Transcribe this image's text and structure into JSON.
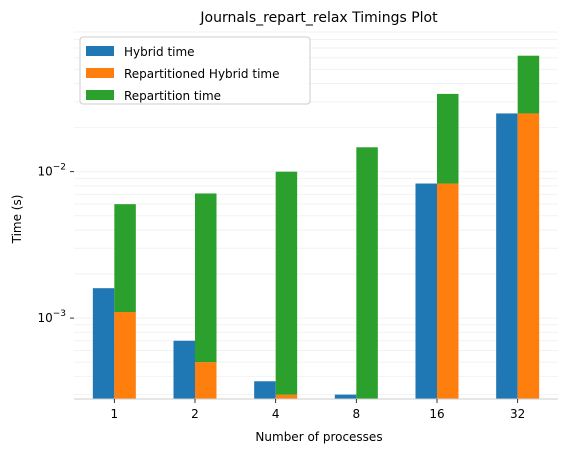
{
  "chart_data": {
    "type": "bar",
    "title": "Journals_repart_relax Timings Plot",
    "xlabel": "Number of processes",
    "ylabel": "Time (s)",
    "yscale": "log",
    "ylim": [
      0.00028,
      0.09
    ],
    "yticks": [
      {
        "value": 0.001,
        "base": "10",
        "exp": "−3"
      },
      {
        "value": 0.01,
        "base": "10",
        "exp": "−2"
      }
    ],
    "grid": "horizontal-minor",
    "legend_position": "top-left",
    "categories": [
      "1",
      "2",
      "4",
      "8",
      "16",
      "32"
    ],
    "series": [
      {
        "name": "Hybrid time",
        "color": "#1f77b4",
        "values": [
          0.0016,
          0.0007,
          0.00037,
          0.0003,
          0.0083,
          0.025
        ],
        "stack": "none"
      },
      {
        "name": "Repartitioned Hybrid time",
        "color": "#ff7f0e",
        "values": [
          0.0011,
          0.0005,
          0.0003,
          0.00028,
          0.0083,
          0.025
        ],
        "stack": "base"
      },
      {
        "name": "Repartition time",
        "color": "#2ca02c",
        "values": [
          0.0049,
          0.0066,
          0.0097,
          0.0144,
          0.0257,
          0.037
        ],
        "stack": "top"
      }
    ]
  }
}
